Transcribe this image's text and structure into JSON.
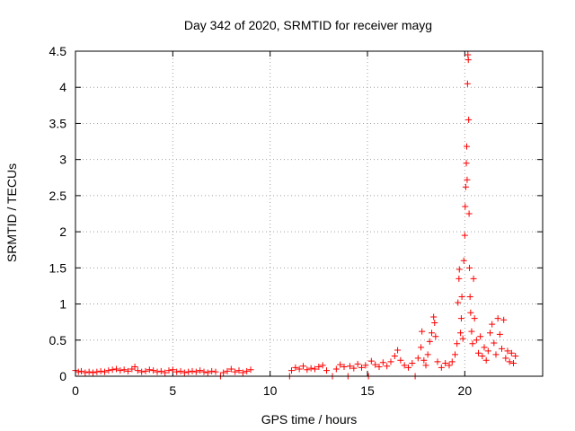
{
  "chart_data": {
    "type": "scatter",
    "title": "Day 342 of 2020, SRMTID for receiver mayg",
    "xlabel": "GPS time / hours",
    "ylabel": "SRMTID / TECUs",
    "xlim": [
      0,
      24
    ],
    "ylim": [
      0,
      4.5
    ],
    "xticks": [
      0,
      5,
      10,
      15,
      20
    ],
    "yticks": [
      0,
      0.5,
      1,
      1.5,
      2,
      2.5,
      3,
      3.5,
      4,
      4.5
    ],
    "grid": true,
    "marker": "+",
    "color": "#ff0000",
    "series": [
      {
        "name": "SRMTID",
        "points": [
          [
            0.0,
            0.08
          ],
          [
            0.15,
            0.06
          ],
          [
            0.3,
            0.07
          ],
          [
            0.5,
            0.05
          ],
          [
            0.7,
            0.06
          ],
          [
            0.9,
            0.05
          ],
          [
            1.1,
            0.06
          ],
          [
            1.3,
            0.07
          ],
          [
            1.5,
            0.06
          ],
          [
            1.7,
            0.08
          ],
          [
            1.9,
            0.09
          ],
          [
            2.1,
            0.1
          ],
          [
            2.3,
            0.08
          ],
          [
            2.5,
            0.09
          ],
          [
            2.7,
            0.07
          ],
          [
            2.9,
            0.1
          ],
          [
            3.05,
            0.13
          ],
          [
            3.2,
            0.08
          ],
          [
            3.4,
            0.06
          ],
          [
            3.6,
            0.07
          ],
          [
            3.8,
            0.09
          ],
          [
            4.0,
            0.08
          ],
          [
            4.2,
            0.06
          ],
          [
            4.4,
            0.07
          ],
          [
            4.6,
            0.05
          ],
          [
            4.8,
            0.08
          ],
          [
            5.0,
            0.09
          ],
          [
            5.2,
            0.06
          ],
          [
            5.4,
            0.07
          ],
          [
            5.6,
            0.05
          ],
          [
            5.8,
            0.06
          ],
          [
            6.0,
            0.07
          ],
          [
            6.2,
            0.06
          ],
          [
            6.4,
            0.08
          ],
          [
            6.6,
            0.06
          ],
          [
            6.8,
            0.05
          ],
          [
            7.0,
            0.07
          ],
          [
            7.2,
            0.06
          ],
          [
            7.45,
            0.0
          ],
          [
            7.6,
            0.05
          ],
          [
            7.8,
            0.07
          ],
          [
            8.0,
            0.1
          ],
          [
            8.2,
            0.06
          ],
          [
            8.4,
            0.08
          ],
          [
            8.6,
            0.05
          ],
          [
            8.8,
            0.07
          ],
          [
            9.0,
            0.09
          ],
          [
            11.0,
            0.0
          ],
          [
            11.1,
            0.08
          ],
          [
            11.3,
            0.12
          ],
          [
            11.5,
            0.1
          ],
          [
            11.7,
            0.14
          ],
          [
            11.9,
            0.09
          ],
          [
            12.1,
            0.11
          ],
          [
            12.3,
            0.1
          ],
          [
            12.5,
            0.13
          ],
          [
            12.7,
            0.15
          ],
          [
            12.9,
            0.08
          ],
          [
            13.2,
            0.0
          ],
          [
            13.4,
            0.1
          ],
          [
            13.6,
            0.16
          ],
          [
            13.8,
            0.13
          ],
          [
            14.0,
            0.0
          ],
          [
            14.1,
            0.14
          ],
          [
            14.3,
            0.11
          ],
          [
            14.5,
            0.17
          ],
          [
            14.7,
            0.12
          ],
          [
            14.9,
            0.15
          ],
          [
            15.05,
            0.0
          ],
          [
            15.2,
            0.21
          ],
          [
            15.4,
            0.16
          ],
          [
            15.6,
            0.13
          ],
          [
            15.8,
            0.19
          ],
          [
            16.0,
            0.14
          ],
          [
            16.2,
            0.2
          ],
          [
            16.4,
            0.28
          ],
          [
            16.55,
            0.36
          ],
          [
            16.7,
            0.22
          ],
          [
            16.9,
            0.15
          ],
          [
            17.1,
            0.12
          ],
          [
            17.3,
            0.18
          ],
          [
            17.45,
            0.0
          ],
          [
            17.6,
            0.25
          ],
          [
            17.75,
            0.4
          ],
          [
            17.8,
            0.62
          ],
          [
            17.9,
            0.22
          ],
          [
            18.0,
            0.15
          ],
          [
            18.1,
            0.3
          ],
          [
            18.2,
            0.48
          ],
          [
            18.3,
            0.6
          ],
          [
            18.4,
            0.82
          ],
          [
            18.45,
            0.74
          ],
          [
            18.5,
            0.55
          ],
          [
            18.6,
            0.2
          ],
          [
            18.8,
            0.12
          ],
          [
            19.0,
            0.18
          ],
          [
            19.2,
            0.15
          ],
          [
            19.35,
            0.2
          ],
          [
            19.5,
            0.3
          ],
          [
            19.6,
            0.45
          ],
          [
            19.65,
            1.02
          ],
          [
            19.7,
            1.35
          ],
          [
            19.72,
            1.48
          ],
          [
            19.78,
            0.6
          ],
          [
            19.82,
            0.8
          ],
          [
            19.85,
            1.1
          ],
          [
            19.9,
            0.52
          ],
          [
            19.95,
            1.6
          ],
          [
            20.0,
            1.95
          ],
          [
            20.02,
            2.35
          ],
          [
            20.05,
            2.62
          ],
          [
            20.08,
            2.95
          ],
          [
            20.1,
            3.18
          ],
          [
            20.12,
            2.72
          ],
          [
            20.14,
            4.05
          ],
          [
            20.16,
            4.45
          ],
          [
            20.18,
            4.38
          ],
          [
            20.2,
            3.55
          ],
          [
            20.22,
            2.25
          ],
          [
            20.24,
            1.5
          ],
          [
            20.27,
            1.1
          ],
          [
            20.3,
            0.88
          ],
          [
            20.35,
            0.62
          ],
          [
            20.4,
            0.45
          ],
          [
            20.45,
            1.35
          ],
          [
            20.5,
            0.8
          ],
          [
            20.6,
            0.5
          ],
          [
            20.7,
            0.32
          ],
          [
            20.8,
            0.55
          ],
          [
            20.9,
            0.28
          ],
          [
            21.0,
            0.4
          ],
          [
            21.1,
            0.22
          ],
          [
            21.2,
            0.35
          ],
          [
            21.3,
            0.6
          ],
          [
            21.4,
            0.72
          ],
          [
            21.5,
            0.46
          ],
          [
            21.6,
            0.3
          ],
          [
            21.7,
            0.8
          ],
          [
            21.8,
            0.58
          ],
          [
            21.9,
            0.38
          ],
          [
            22.0,
            0.78
          ],
          [
            22.1,
            0.25
          ],
          [
            22.2,
            0.35
          ],
          [
            22.3,
            0.2
          ],
          [
            22.4,
            0.32
          ],
          [
            22.5,
            0.18
          ],
          [
            22.6,
            0.28
          ]
        ]
      }
    ]
  }
}
